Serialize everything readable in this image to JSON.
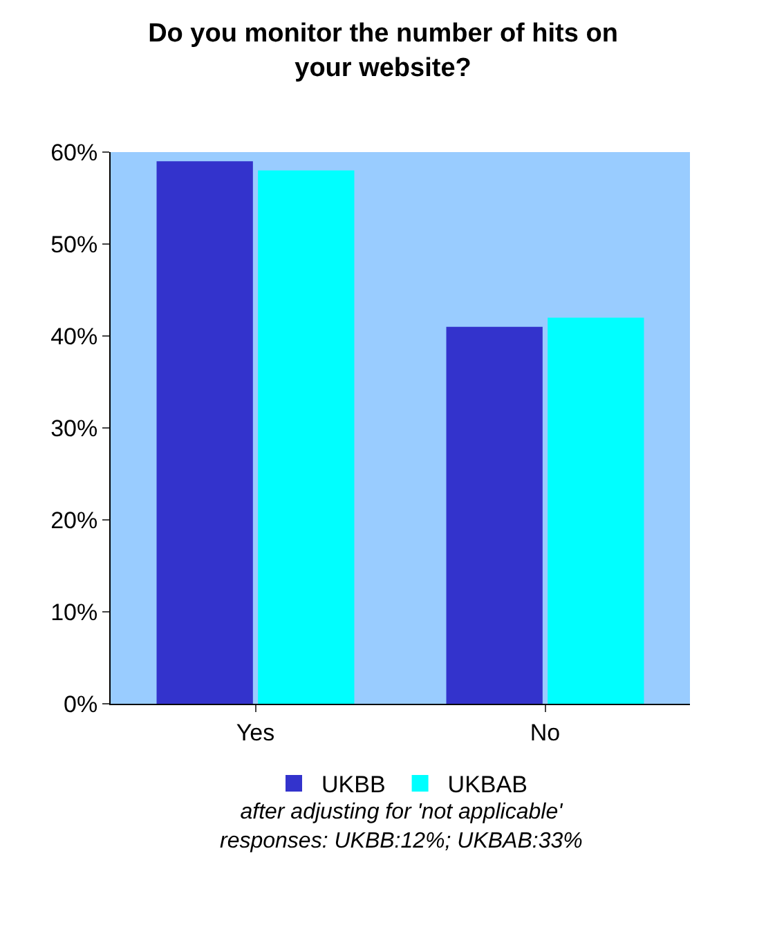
{
  "chart_data": {
    "type": "bar",
    "title": "Do you monitor the number of hits on your website?",
    "categories": [
      "Yes",
      "No"
    ],
    "series": [
      {
        "name": "UKBB",
        "color": "#3333cc",
        "values": [
          59,
          41
        ]
      },
      {
        "name": "UKBAB",
        "color": "#00ffff",
        "values": [
          58,
          42
        ]
      }
    ],
    "ylim": [
      0,
      60
    ],
    "yticks": [
      {
        "value": 0,
        "label": "0%"
      },
      {
        "value": 10,
        "label": "10%"
      },
      {
        "value": 20,
        "label": "20%"
      },
      {
        "value": 30,
        "label": "30%"
      },
      {
        "value": 40,
        "label": "40%"
      },
      {
        "value": 50,
        "label": "50%"
      },
      {
        "value": 60,
        "label": "60%"
      }
    ],
    "grid": false,
    "legend": "bottom",
    "annotations": [
      "after adjusting for 'not applicable' responses: UKBB:12%; UKBAB:33%"
    ]
  }
}
